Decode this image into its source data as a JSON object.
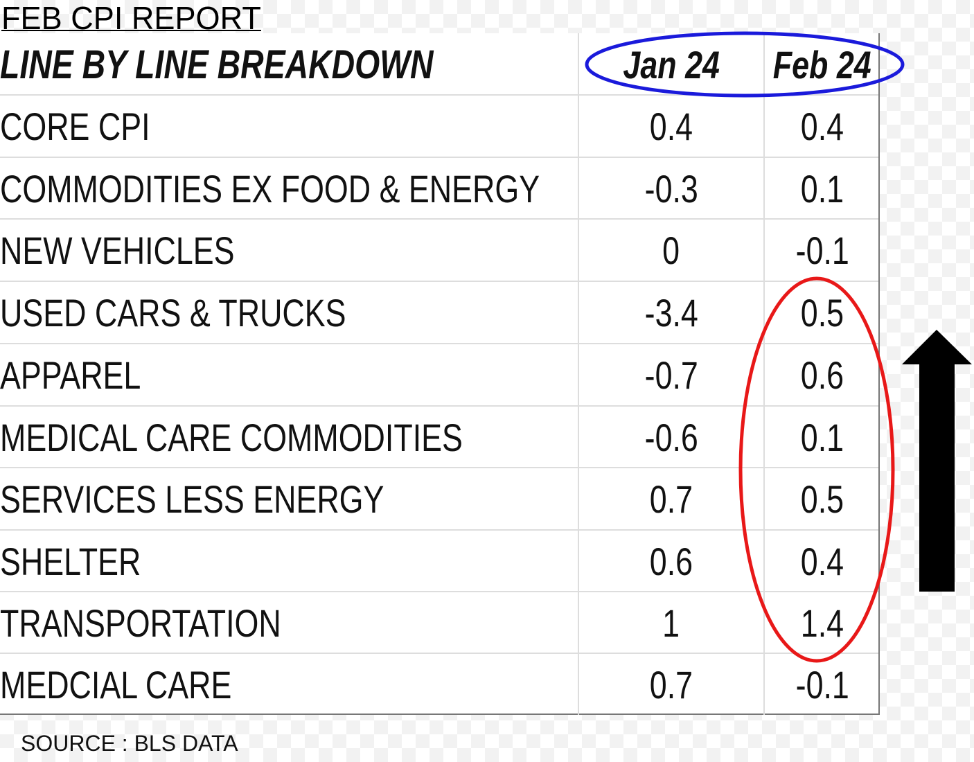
{
  "chart_data": {
    "type": "table",
    "title": "FEB CPI REPORT",
    "subtitle": "LINE BY LINE BREAKDOWN",
    "columns": [
      "Jan 24",
      "Feb 24"
    ],
    "rows": [
      {
        "label": "CORE CPI",
        "jan": "0.4",
        "feb": "0.4"
      },
      {
        "label": "COMMODITIES EX FOOD & ENERGY",
        "jan": "-0.3",
        "feb": "0.1"
      },
      {
        "label": "NEW VEHICLES",
        "jan": "0",
        "feb": "-0.1"
      },
      {
        "label": "USED CARS & TRUCKS",
        "jan": "-3.4",
        "feb": "0.5"
      },
      {
        "label": "APPAREL",
        "jan": "-0.7",
        "feb": "0.6"
      },
      {
        "label": "MEDICAL CARE COMMODITIES",
        "jan": "-0.6",
        "feb": "0.1"
      },
      {
        "label": "SERVICES LESS ENERGY",
        "jan": "0.7",
        "feb": "0.5"
      },
      {
        "label": "SHELTER",
        "jan": "0.6",
        "feb": "0.4"
      },
      {
        "label": "TRANSPORTATION",
        "jan": "1",
        "feb": "1.4"
      },
      {
        "label": "MEDCIAL CARE",
        "jan": "0.7",
        "feb": "-0.1"
      }
    ],
    "source": "SOURCE : BLS DATA",
    "annotations": [
      {
        "kind": "ellipse",
        "target": "column headers",
        "color": "#1a1adb"
      },
      {
        "kind": "ellipse",
        "target": "Feb 24 values, USED CARS & TRUCKS through TRANSPORTATION",
        "color": "#e81818"
      },
      {
        "kind": "arrow",
        "direction": "up",
        "color": "#000000"
      }
    ]
  }
}
